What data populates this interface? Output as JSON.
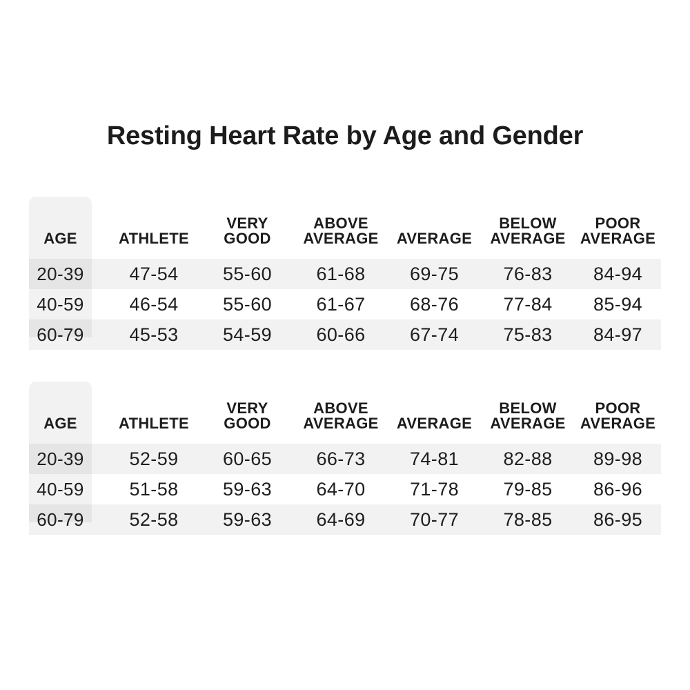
{
  "title": "Resting Heart Rate by Age and Gender",
  "colors": {
    "background": "#ffffff",
    "text": "#1c1c1c",
    "stripe": "#f2f2f2",
    "age_panel": "#f2f2f2",
    "age_panel_overlap": "#e8e8e8"
  },
  "chart_data": [
    {
      "type": "table",
      "title": "Resting Heart Rate by Age and Gender",
      "columns": [
        "AGE",
        "ATHLETE",
        "VERY\nGOOD",
        "ABOVE\nAVERAGE",
        "AVERAGE",
        "BELOW\nAVERAGE",
        "POOR\nAVERAGE"
      ],
      "rows": [
        [
          "20-39",
          "47-54",
          "55-60",
          "61-68",
          "69-75",
          "76-83",
          "84-94"
        ],
        [
          "40-59",
          "46-54",
          "55-60",
          "61-67",
          "68-76",
          "77-84",
          "85-94"
        ],
        [
          "60-79",
          "45-53",
          "54-59",
          "60-66",
          "67-74",
          "75-83",
          "84-97"
        ]
      ],
      "layout": {
        "striped_rows": [
          0,
          2
        ],
        "age_column_shaded": true
      }
    },
    {
      "type": "table",
      "title": "Resting Heart Rate by Age and Gender",
      "columns": [
        "AGE",
        "ATHLETE",
        "VERY\nGOOD",
        "ABOVE\nAVERAGE",
        "AVERAGE",
        "BELOW\nAVERAGE",
        "POOR\nAVERAGE"
      ],
      "rows": [
        [
          "20-39",
          "52-59",
          "60-65",
          "66-73",
          "74-81",
          "82-88",
          "89-98"
        ],
        [
          "40-59",
          "51-58",
          "59-63",
          "64-70",
          "71-78",
          "79-85",
          "86-96"
        ],
        [
          "60-79",
          "52-58",
          "59-63",
          "64-69",
          "70-77",
          "78-85",
          "86-95"
        ]
      ],
      "layout": {
        "striped_rows": [
          0,
          2
        ],
        "age_column_shaded": true
      }
    }
  ]
}
